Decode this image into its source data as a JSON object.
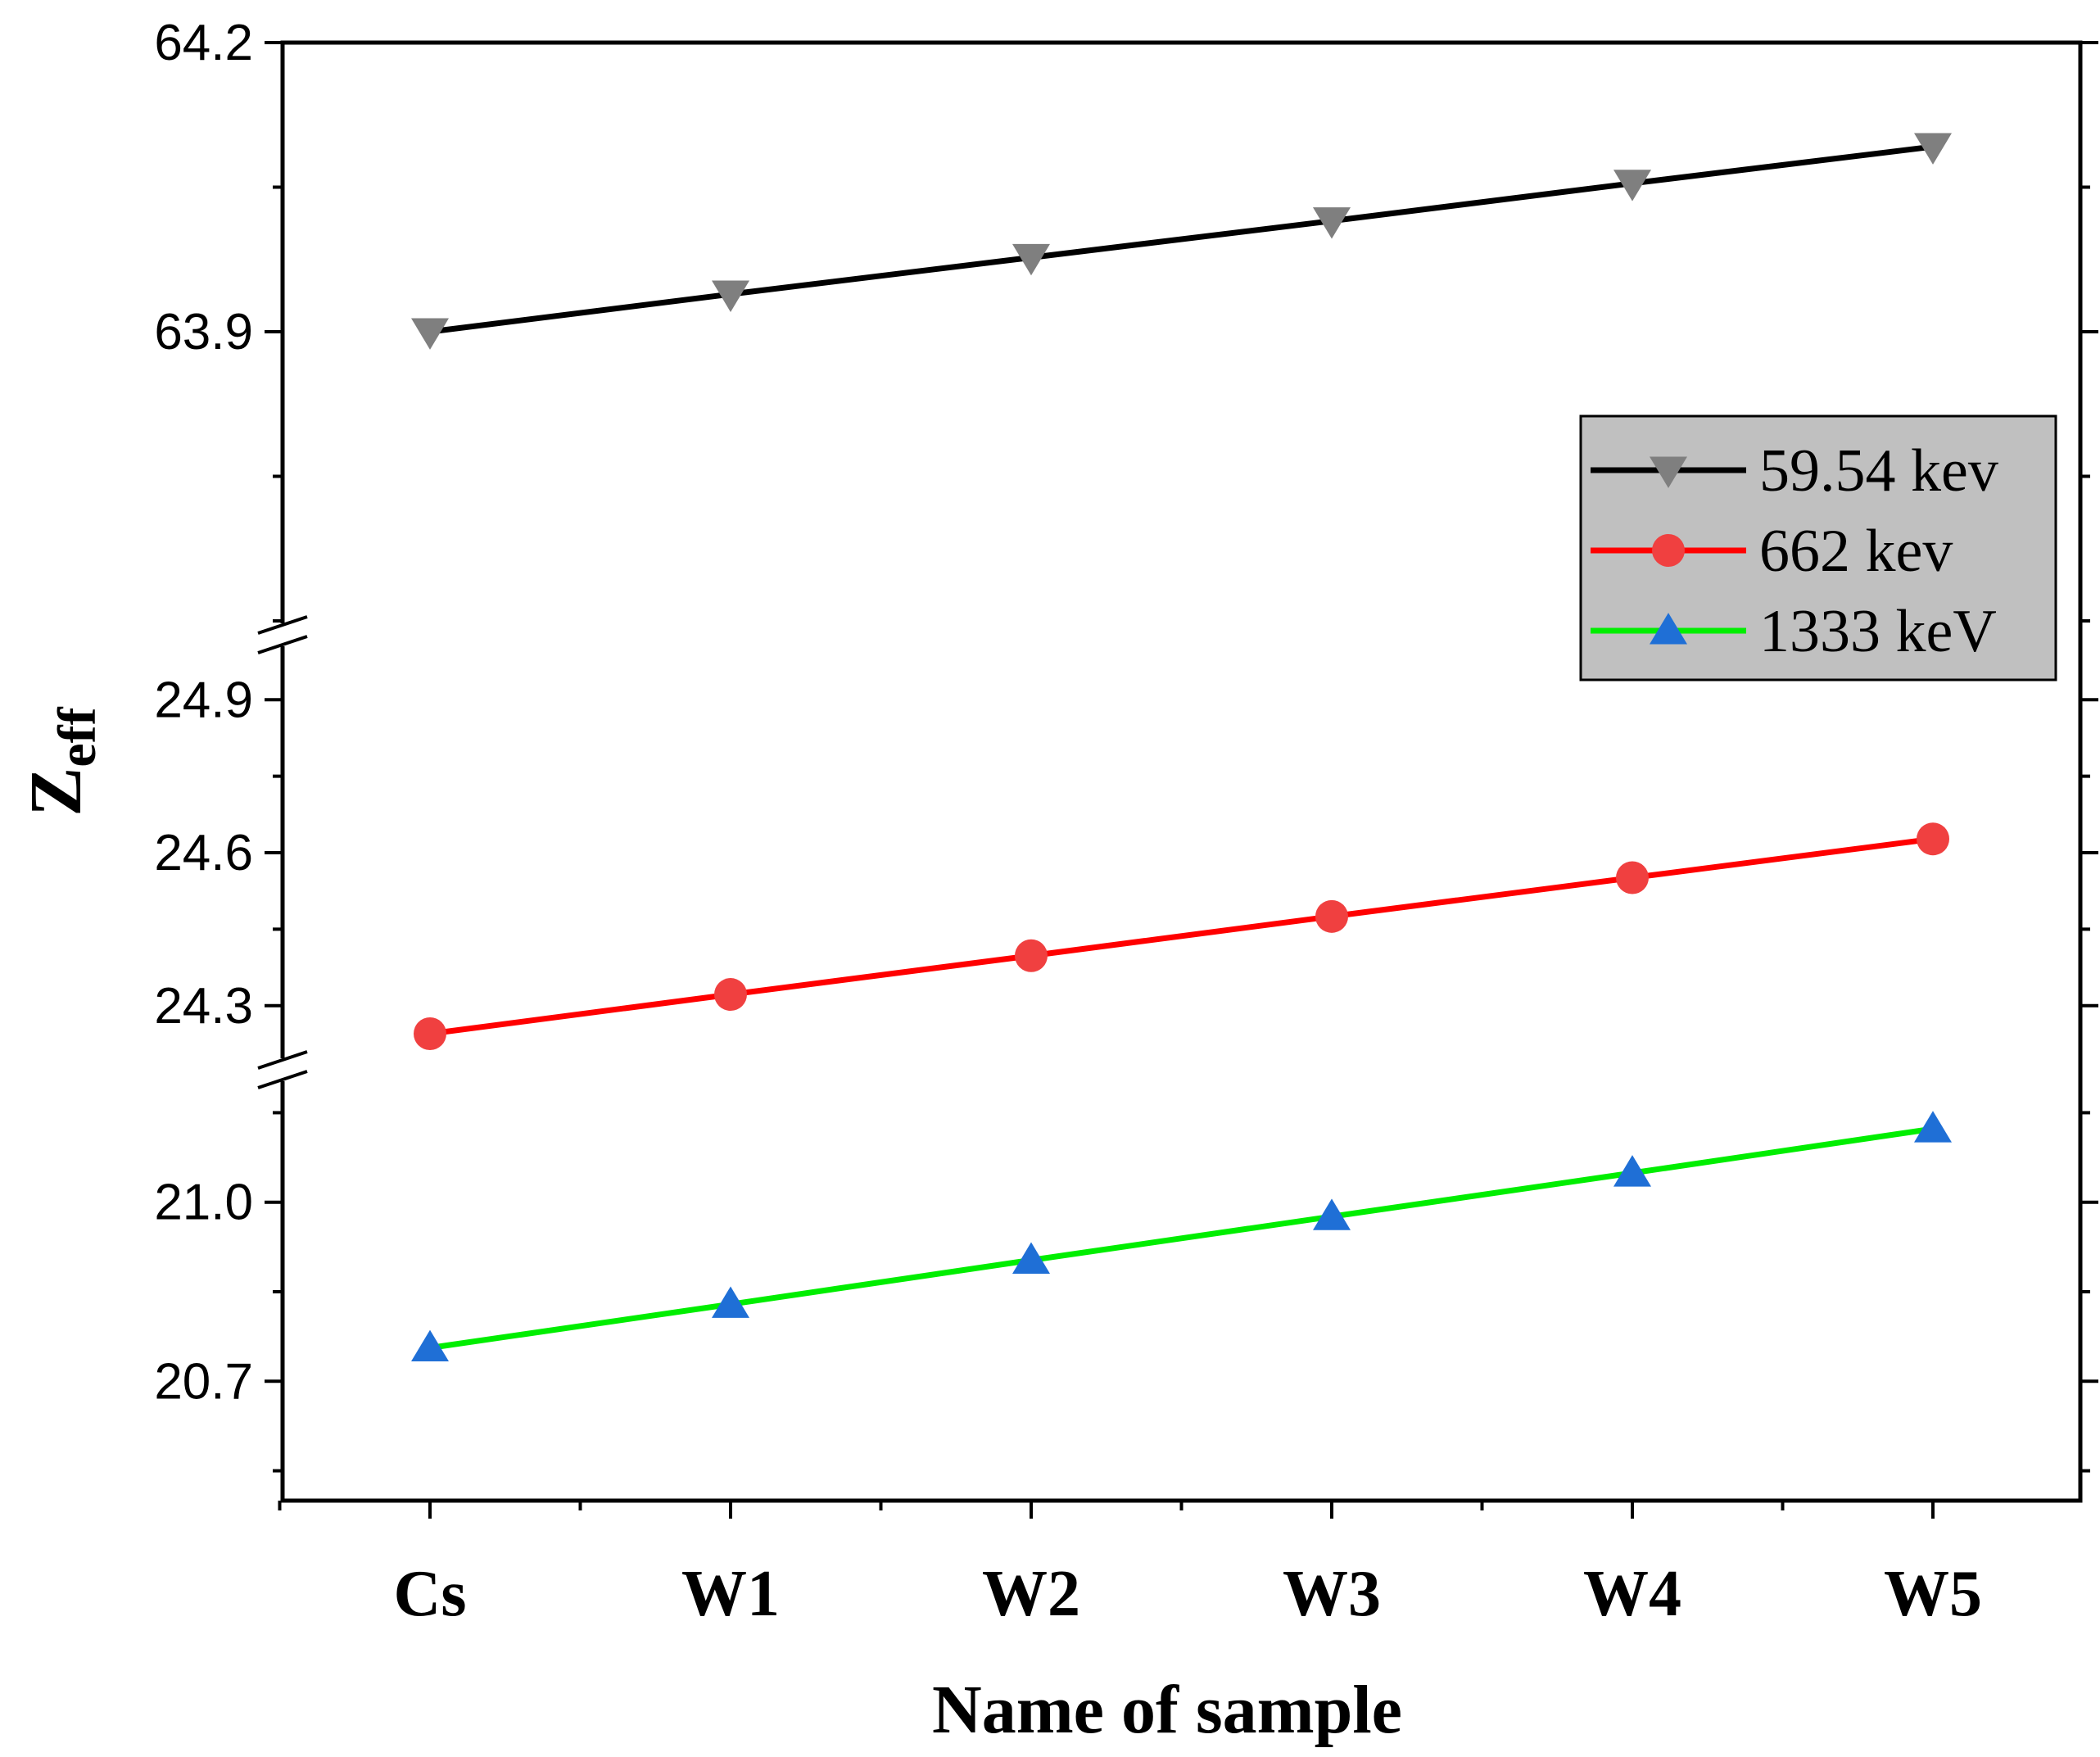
{
  "chart_data": {
    "type": "line",
    "xlabel": "Name of sample",
    "ylabel": "Z",
    "ylabel_subscript": "eff",
    "categories": [
      "Cs",
      "W1",
      "W2",
      "W3",
      "W4",
      "W5"
    ],
    "axis_segments": [
      {
        "name": "upper",
        "ylim": [
          63.6,
          64.2
        ],
        "ticks": [
          63.9,
          64.2
        ],
        "tick_labels": [
          "63.9",
          "64.2"
        ]
      },
      {
        "name": "middle",
        "ylim": [
          24.2,
          25.0
        ],
        "ticks": [
          24.3,
          24.6,
          24.9
        ],
        "tick_labels": [
          "24.3",
          "24.6",
          "24.9"
        ]
      },
      {
        "name": "lower",
        "ylim": [
          20.5,
          21.2
        ],
        "ticks": [
          20.7,
          21.0
        ],
        "tick_labels": [
          "20.7",
          "21.0"
        ]
      }
    ],
    "series": [
      {
        "name": "59.54 kev",
        "segment": "upper",
        "line_color": "#000000",
        "marker": "triangle-down",
        "marker_color": "#7f7f7f",
        "values": [
          63.9,
          63.939,
          63.977,
          64.015,
          64.054,
          64.092
        ]
      },
      {
        "name": "662 kev",
        "segment": "middle",
        "line_color": "#ff0000",
        "marker": "circle",
        "marker_color": "#f04040",
        "values": [
          24.245,
          24.322,
          24.398,
          24.475,
          24.551,
          24.627
        ]
      },
      {
        "name": "1333 keV",
        "segment": "lower",
        "line_color": "#00ee00",
        "marker": "triangle-up",
        "marker_color": "#1f6fd6",
        "values": [
          20.756,
          20.829,
          20.903,
          20.976,
          21.049,
          21.123
        ]
      }
    ],
    "legend": {
      "position": "right",
      "background": "#c0c0c0"
    }
  }
}
